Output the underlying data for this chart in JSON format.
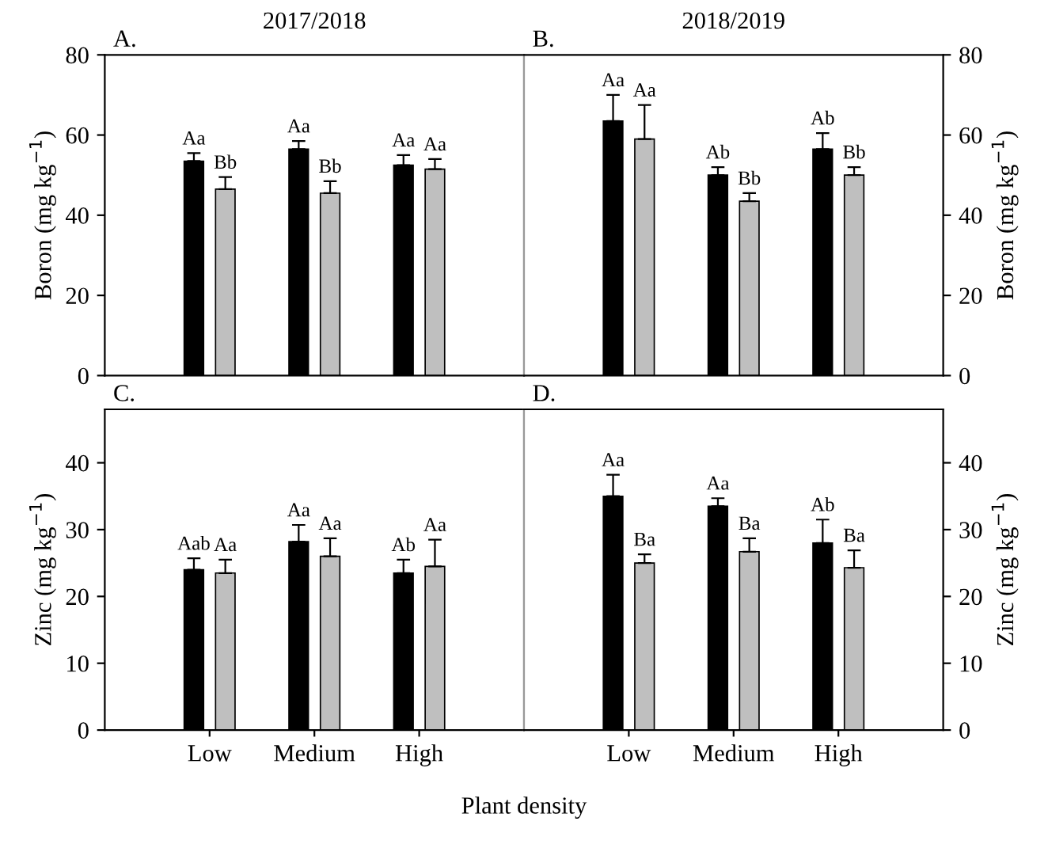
{
  "chart_data": [
    {
      "type": "bar",
      "title": "2017/2018",
      "ylabel": "Boron (mg kg$^{−1}$)",
      "annotations": [
        "A."
      ],
      "categories": [
        null,
        null,
        null
      ],
      "ylim": [
        0,
        80
      ],
      "yticks": [
        0,
        20,
        40,
        60,
        80
      ],
      "grid": false,
      "series": [
        {
          "color": "#000000",
          "values": [
            53.5,
            56.5,
            52.5
          ],
          "errors": [
            2,
            2,
            2.5
          ],
          "value_labels": [
            "Aa",
            "Aa",
            "Aa"
          ]
        },
        {
          "color": "#bfbfbf",
          "values": [
            46.5,
            45.5,
            51.5
          ],
          "errors": [
            3,
            3,
            2.5
          ],
          "value_labels": [
            "Bb",
            "Bb",
            "Aa"
          ]
        }
      ]
    },
    {
      "type": "bar",
      "title": "2018/2019",
      "ylabel": "Boron (mg kg$^{−1}$)",
      "annotations": [
        "B."
      ],
      "categories": [
        null,
        null,
        null
      ],
      "ylim": [
        0,
        80
      ],
      "yticks": [
        0,
        20,
        40,
        60,
        80
      ],
      "grid": false,
      "series": [
        {
          "color": "#000000",
          "values": [
            63.5,
            50,
            56.5
          ],
          "errors": [
            6.5,
            2,
            4
          ],
          "value_labels": [
            "Aa",
            "Ab",
            "Ab"
          ]
        },
        {
          "color": "#bfbfbf",
          "values": [
            59,
            43.5,
            50
          ],
          "errors": [
            8.5,
            2,
            2
          ],
          "value_labels": [
            "Aa",
            "Bb",
            "Bb"
          ]
        }
      ]
    },
    {
      "type": "bar",
      "ylabel": "Zinc (mg kg$^{−1}$)",
      "xlabel": "Plant density",
      "annotations": [
        "C."
      ],
      "categories": [
        "Low",
        "Medium",
        "High"
      ],
      "ylim": [
        0,
        48
      ],
      "yticks": [
        0,
        10,
        20,
        30,
        40
      ],
      "grid": false,
      "series": [
        {
          "color": "#000000",
          "values": [
            24,
            28.2,
            23.5
          ],
          "errors": [
            1.7,
            2.5,
            2
          ],
          "value_labels": [
            "Aab",
            "Aa",
            "Ab"
          ]
        },
        {
          "color": "#bfbfbf",
          "values": [
            23.5,
            26,
            24.5
          ],
          "errors": [
            2,
            2.7,
            4
          ],
          "value_labels": [
            "Aa",
            "Aa",
            "Aa"
          ]
        }
      ]
    },
    {
      "type": "bar",
      "ylabel": "Zinc (mg kg$^{−1}$)",
      "annotations": [
        "D."
      ],
      "categories": [
        "Low",
        "Medium",
        "High"
      ],
      "ylim": [
        0,
        48
      ],
      "yticks": [
        0,
        10,
        20,
        30,
        40
      ],
      "grid": false,
      "series": [
        {
          "color": "#000000",
          "values": [
            35,
            33.5,
            28
          ],
          "errors": [
            3.2,
            1.2,
            3.5
          ],
          "value_labels": [
            "Aa",
            "Aa",
            "Ab"
          ]
        },
        {
          "color": "#bfbfbf",
          "values": [
            25,
            26.7,
            24.3
          ],
          "errors": [
            1.3,
            2,
            2.6
          ],
          "value_labels": [
            "Ba",
            "Ba",
            "Ba"
          ]
        }
      ]
    }
  ]
}
